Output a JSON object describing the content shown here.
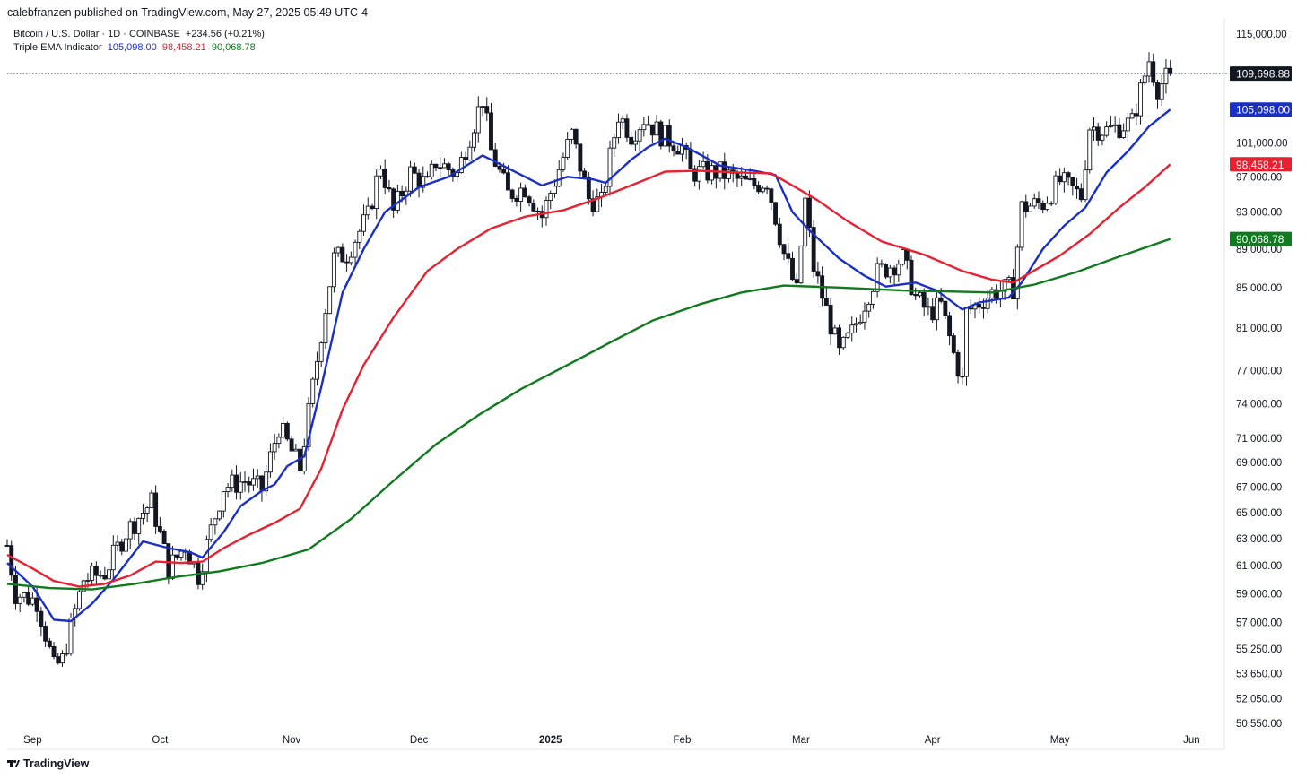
{
  "header": {
    "published": "calebfranzen published on TradingView.com, May 27, 2025 05:49 UTC-4",
    "symbol_line": "Bitcoin / U.S. Dollar · 1D · COINBASE",
    "change": "+234.56 (+0.21%)",
    "indicator_name": "Triple EMA Indicator",
    "ema_fast": "105,098.00",
    "ema_mid": "98,458.21",
    "ema_slow": "90,068.78"
  },
  "footer": {
    "brand": "TradingView",
    "logo_icon": "tradingview-logo-icon"
  },
  "colors": {
    "ema_fast": "#1a2fc4",
    "ema_mid": "#e8202f",
    "ema_slow": "#0f7a1e",
    "last_price_badge": "#131722",
    "candle": "#131722"
  },
  "chart_data": {
    "type": "candlestick",
    "title": "Bitcoin / U.S. Dollar · 1D · COINBASE",
    "xlabel": "",
    "ylabel": "",
    "y_scale": "log",
    "ylim": [
      49500,
      118000
    ],
    "grid": false,
    "x_range": [
      "2024-08-26",
      "2025-06-06"
    ],
    "x_ticks": [
      {
        "date": "2024-09-01",
        "label": "Sep"
      },
      {
        "date": "2024-10-01",
        "label": "Oct"
      },
      {
        "date": "2024-11-01",
        "label": "Nov"
      },
      {
        "date": "2024-12-01",
        "label": "Dec"
      },
      {
        "date": "2025-01-01",
        "label": "2025",
        "bold": true
      },
      {
        "date": "2025-02-01",
        "label": "Feb"
      },
      {
        "date": "2025-03-01",
        "label": "Mar"
      },
      {
        "date": "2025-04-01",
        "label": "Apr"
      },
      {
        "date": "2025-05-01",
        "label": "May"
      },
      {
        "date": "2025-06-01",
        "label": "Jun"
      }
    ],
    "y_ticks": [
      {
        "value": 115000,
        "label": "115,000.00"
      },
      {
        "value": 101000,
        "label": "101,000.00"
      },
      {
        "value": 97000,
        "label": "97,000.00"
      },
      {
        "value": 93000,
        "label": "93,000.00"
      },
      {
        "value": 89000,
        "label": "89,000.00"
      },
      {
        "value": 85000,
        "label": "85,000.00"
      },
      {
        "value": 81000,
        "label": "81,000.00"
      },
      {
        "value": 77000,
        "label": "77,000.00"
      },
      {
        "value": 74000,
        "label": "74,000.00"
      },
      {
        "value": 71000,
        "label": "71,000.00"
      },
      {
        "value": 69000,
        "label": "69,000.00"
      },
      {
        "value": 67000,
        "label": "67,000.00"
      },
      {
        "value": 65000,
        "label": "65,000.00"
      },
      {
        "value": 63000,
        "label": "63,000.00"
      },
      {
        "value": 61000,
        "label": "61,000.00"
      },
      {
        "value": 59000,
        "label": "59,000.00"
      },
      {
        "value": 57000,
        "label": "57,000.00"
      },
      {
        "value": 55250,
        "label": "55,250.00"
      },
      {
        "value": 53650,
        "label": "53,650.00"
      },
      {
        "value": 52050,
        "label": "52,050.00"
      },
      {
        "value": 50550,
        "label": "50,550.00"
      }
    ],
    "price_badges": [
      {
        "value": 109698.88,
        "label": "109,698.88",
        "color": "#131722"
      },
      {
        "value": 105098.0,
        "label": "105,098.00",
        "color": "#1a2fc4"
      },
      {
        "value": 98458.21,
        "label": "98,458.21",
        "color": "#e8202f"
      },
      {
        "value": 90068.78,
        "label": "90,068.78",
        "color": "#0f7a1e"
      }
    ],
    "last_price": 109698.88,
    "price_path": [
      [
        "2024-08-26",
        62500
      ],
      [
        "2024-08-28",
        59000
      ],
      [
        "2024-09-02",
        58500
      ],
      [
        "2024-09-06",
        54000
      ],
      [
        "2024-09-08",
        54500
      ],
      [
        "2024-09-13",
        60000
      ],
      [
        "2024-09-18",
        60500
      ],
      [
        "2024-09-23",
        63500
      ],
      [
        "2024-09-29",
        65800
      ],
      [
        "2024-10-03",
        60800
      ],
      [
        "2024-10-07",
        62500
      ],
      [
        "2024-10-10",
        60300
      ],
      [
        "2024-10-16",
        67000
      ],
      [
        "2024-10-21",
        67500
      ],
      [
        "2024-10-25",
        66800
      ],
      [
        "2024-10-29",
        72000
      ],
      [
        "2024-11-03",
        68500
      ],
      [
        "2024-11-06",
        75500
      ],
      [
        "2024-11-11",
        88000
      ],
      [
        "2024-11-14",
        88500
      ],
      [
        "2024-11-19",
        92500
      ],
      [
        "2024-11-22",
        98500
      ],
      [
        "2024-11-25",
        93000
      ],
      [
        "2024-11-29",
        97500
      ],
      [
        "2024-12-03",
        96000
      ],
      [
        "2024-12-05",
        98800
      ],
      [
        "2024-12-10",
        97300
      ],
      [
        "2024-12-16",
        106500
      ],
      [
        "2024-12-18",
        100000
      ],
      [
        "2024-12-22",
        95000
      ],
      [
        "2024-12-26",
        95800
      ],
      [
        "2024-12-30",
        92500
      ],
      [
        "2025-01-06",
        102000
      ],
      [
        "2025-01-10",
        94500
      ],
      [
        "2025-01-13",
        94000
      ],
      [
        "2025-01-17",
        104500
      ],
      [
        "2025-01-20",
        102000
      ],
      [
        "2025-01-23",
        104000
      ],
      [
        "2025-01-27",
        102000
      ],
      [
        "2025-02-01",
        100500
      ],
      [
        "2025-02-03",
        97500
      ],
      [
        "2025-02-10",
        97500
      ],
      [
        "2025-02-17",
        96000
      ],
      [
        "2025-02-21",
        96500
      ],
      [
        "2025-02-25",
        88500
      ],
      [
        "2025-02-28",
        84500
      ],
      [
        "2025-03-02",
        94200
      ],
      [
        "2025-03-04",
        87000
      ],
      [
        "2025-03-10",
        78500
      ],
      [
        "2025-03-13",
        80500
      ],
      [
        "2025-03-19",
        86500
      ],
      [
        "2025-03-25",
        88000
      ],
      [
        "2025-03-28",
        84000
      ],
      [
        "2025-03-31",
        82500
      ],
      [
        "2025-04-03",
        83200
      ],
      [
        "2025-04-06",
        78500
      ],
      [
        "2025-04-08",
        76000
      ],
      [
        "2025-04-09",
        82500
      ],
      [
        "2025-04-15",
        84500
      ],
      [
        "2025-04-20",
        85000
      ],
      [
        "2025-04-22",
        93500
      ],
      [
        "2025-04-27",
        94000
      ],
      [
        "2025-05-01",
        96500
      ],
      [
        "2025-05-06",
        94800
      ],
      [
        "2025-05-08",
        103000
      ],
      [
        "2025-05-12",
        102500
      ],
      [
        "2025-05-18",
        103500
      ],
      [
        "2025-05-21",
        109500
      ],
      [
        "2025-05-22",
        111500
      ],
      [
        "2025-05-24",
        107800
      ],
      [
        "2025-05-27",
        109698.88
      ]
    ],
    "series": [
      {
        "name": "EMA 1",
        "legend_value": "105,098.00",
        "color": "#1a2fc4",
        "points": [
          [
            "2024-08-26",
            61200
          ],
          [
            "2024-09-01",
            59500
          ],
          [
            "2024-09-06",
            57200
          ],
          [
            "2024-09-10",
            57100
          ],
          [
            "2024-09-15",
            58300
          ],
          [
            "2024-09-20",
            60000
          ],
          [
            "2024-09-27",
            62800
          ],
          [
            "2024-10-03",
            62300
          ],
          [
            "2024-10-08",
            62000
          ],
          [
            "2024-10-11",
            61600
          ],
          [
            "2024-10-16",
            63500
          ],
          [
            "2024-10-20",
            65500
          ],
          [
            "2024-10-25",
            66700
          ],
          [
            "2024-10-28",
            67200
          ],
          [
            "2024-10-31",
            68700
          ],
          [
            "2024-11-04",
            69500
          ],
          [
            "2024-11-08",
            75500
          ],
          [
            "2024-11-13",
            84500
          ],
          [
            "2024-11-18",
            89000
          ],
          [
            "2024-11-23",
            93000
          ],
          [
            "2024-12-01",
            95800
          ],
          [
            "2024-12-08",
            97000
          ],
          [
            "2024-12-16",
            99500
          ],
          [
            "2024-12-22",
            98000
          ],
          [
            "2024-12-30",
            96000
          ],
          [
            "2025-01-05",
            97000
          ],
          [
            "2025-01-11",
            96700
          ],
          [
            "2025-01-14",
            96300
          ],
          [
            "2025-01-20",
            99000
          ],
          [
            "2025-01-24",
            100500
          ],
          [
            "2025-01-28",
            101500
          ],
          [
            "2025-02-02",
            100500
          ],
          [
            "2025-02-10",
            98300
          ],
          [
            "2025-02-18",
            97700
          ],
          [
            "2025-02-23",
            97200
          ],
          [
            "2025-02-27",
            93000
          ],
          [
            "2025-03-03",
            91000
          ],
          [
            "2025-03-10",
            88000
          ],
          [
            "2025-03-16",
            86200
          ],
          [
            "2025-03-21",
            85100
          ],
          [
            "2025-03-28",
            85500
          ],
          [
            "2025-04-02",
            84700
          ],
          [
            "2025-04-08",
            82800
          ],
          [
            "2025-04-12",
            83500
          ],
          [
            "2025-04-19",
            84000
          ],
          [
            "2025-04-22",
            85500
          ],
          [
            "2025-04-27",
            89000
          ],
          [
            "2025-05-02",
            91500
          ],
          [
            "2025-05-07",
            93500
          ],
          [
            "2025-05-12",
            97500
          ],
          [
            "2025-05-17",
            100000
          ],
          [
            "2025-05-22",
            103000
          ],
          [
            "2025-05-27",
            105098
          ]
        ]
      },
      {
        "name": "EMA 2",
        "legend_value": "98,458.21",
        "color": "#e8202f",
        "points": [
          [
            "2024-08-26",
            61800
          ],
          [
            "2024-09-01",
            60800
          ],
          [
            "2024-09-06",
            59900
          ],
          [
            "2024-09-12",
            59500
          ],
          [
            "2024-09-18",
            59700
          ],
          [
            "2024-09-24",
            60300
          ],
          [
            "2024-09-30",
            61300
          ],
          [
            "2024-10-06",
            61200
          ],
          [
            "2024-10-11",
            61300
          ],
          [
            "2024-10-16",
            62300
          ],
          [
            "2024-10-22",
            63300
          ],
          [
            "2024-10-28",
            64200
          ],
          [
            "2024-11-03",
            65300
          ],
          [
            "2024-11-08",
            68500
          ],
          [
            "2024-11-13",
            73500
          ],
          [
            "2024-11-18",
            77500
          ],
          [
            "2024-11-25",
            82000
          ],
          [
            "2024-12-03",
            86700
          ],
          [
            "2024-12-10",
            89000
          ],
          [
            "2024-12-18",
            91200
          ],
          [
            "2024-12-26",
            92500
          ],
          [
            "2025-01-04",
            93200
          ],
          [
            "2025-01-12",
            94500
          ],
          [
            "2025-01-20",
            96000
          ],
          [
            "2025-01-28",
            97600
          ],
          [
            "2025-02-05",
            97700
          ],
          [
            "2025-02-14",
            97500
          ],
          [
            "2025-02-22",
            97400
          ],
          [
            "2025-02-27",
            96000
          ],
          [
            "2025-03-05",
            94300
          ],
          [
            "2025-03-12",
            92000
          ],
          [
            "2025-03-20",
            89800
          ],
          [
            "2025-03-30",
            88400
          ],
          [
            "2025-04-08",
            86700
          ],
          [
            "2025-04-15",
            85800
          ],
          [
            "2025-04-20",
            85500
          ],
          [
            "2025-04-24",
            86500
          ],
          [
            "2025-05-01",
            88300
          ],
          [
            "2025-05-08",
            90600
          ],
          [
            "2025-05-15",
            93500
          ],
          [
            "2025-05-21",
            95800
          ],
          [
            "2025-05-27",
            98458
          ]
        ]
      },
      {
        "name": "EMA 3",
        "legend_value": "90,068.78",
        "color": "#0f7a1e",
        "points": [
          [
            "2024-08-26",
            59700
          ],
          [
            "2024-09-05",
            59400
          ],
          [
            "2024-09-15",
            59300
          ],
          [
            "2024-09-25",
            59700
          ],
          [
            "2024-10-05",
            60200
          ],
          [
            "2024-10-15",
            60600
          ],
          [
            "2024-10-25",
            61200
          ],
          [
            "2024-11-05",
            62200
          ],
          [
            "2024-11-15",
            64500
          ],
          [
            "2024-11-25",
            67500
          ],
          [
            "2024-12-05",
            70500
          ],
          [
            "2024-12-15",
            73000
          ],
          [
            "2024-12-25",
            75300
          ],
          [
            "2025-01-05",
            77500
          ],
          [
            "2025-01-15",
            79600
          ],
          [
            "2025-01-25",
            81700
          ],
          [
            "2025-02-05",
            83300
          ],
          [
            "2025-02-15",
            84500
          ],
          [
            "2025-02-25",
            85200
          ],
          [
            "2025-03-10",
            85000
          ],
          [
            "2025-03-25",
            84700
          ],
          [
            "2025-04-05",
            84600
          ],
          [
            "2025-04-15",
            84500
          ],
          [
            "2025-04-25",
            85300
          ],
          [
            "2025-05-05",
            86600
          ],
          [
            "2025-05-15",
            88200
          ],
          [
            "2025-05-27",
            90069
          ]
        ]
      }
    ]
  }
}
